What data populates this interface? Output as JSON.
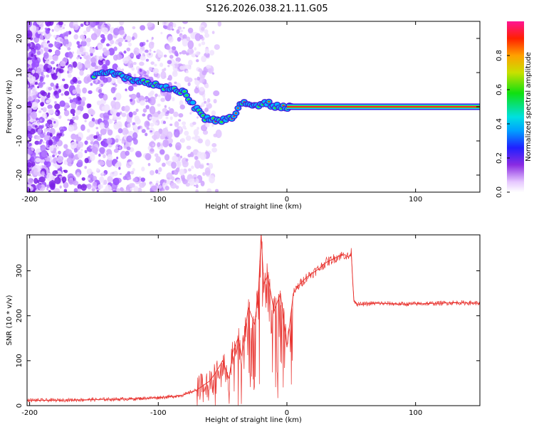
{
  "title": "S126.2026.038.21.11.G05",
  "colors": {
    "snr_line": "#e8312d",
    "axis": "#000000",
    "background": "#ffffff"
  },
  "chart_data": [
    {
      "type": "heatmap",
      "xlabel": "Height of straight line (km)",
      "ylabel": "Frequency (Hz)",
      "xlim": [
        -202,
        150
      ],
      "ylim": [
        -25,
        25
      ],
      "xticks": [
        -200,
        -100,
        0,
        100
      ],
      "xtick_labels": [
        "-200",
        "-100",
        "0",
        "100"
      ],
      "yticks": [
        -20,
        -10,
        0,
        10,
        20
      ],
      "ytick_labels": [
        "-20",
        "-10",
        "0",
        "10",
        "20"
      ],
      "colorbar": {
        "label": "Normalized spectral amplitude",
        "range": [
          0,
          1
        ],
        "ticks": [
          0.0,
          0.2,
          0.4,
          0.6,
          0.8
        ],
        "tick_labels": [
          "0.0",
          "0.2",
          "0.4",
          "0.6",
          "0.8"
        ]
      },
      "ridge": {
        "x": [
          -150,
          -140,
          -130,
          -120,
          -110,
          -100,
          -90,
          -80,
          -72,
          -65,
          -58,
          -50,
          -42,
          -36,
          -30,
          -24,
          -18,
          -12,
          -6,
          0,
          5,
          150
        ],
        "frequency": [
          9,
          10,
          9,
          8,
          7,
          6,
          5,
          4,
          0,
          -3,
          -4,
          -4,
          -3,
          1,
          0.5,
          0,
          1.5,
          0.5,
          0,
          0,
          0,
          0
        ]
      }
    },
    {
      "type": "line",
      "xlabel": "Height of straight line (km)",
      "ylabel": "SNR (10 * v/v)",
      "xlim": [
        -202,
        150
      ],
      "ylim": [
        0,
        380
      ],
      "xticks": [
        -200,
        -100,
        0,
        100
      ],
      "xtick_labels": [
        "-200",
        "-100",
        "0",
        "100"
      ],
      "yticks": [
        0,
        100,
        200,
        300
      ],
      "ytick_labels": [
        "0",
        "100",
        "200",
        "300"
      ],
      "series": [
        {
          "name": "SNR",
          "x": [
            -202,
            -180,
            -160,
            -140,
            -120,
            -100,
            -90,
            -80,
            -75,
            -70,
            -65,
            -60,
            -55,
            -50,
            -45,
            -42,
            -38,
            -35,
            -30,
            -25,
            -22,
            -20,
            -18,
            -15,
            -10,
            -5,
            0,
            5,
            10,
            15,
            20,
            25,
            30,
            35,
            40,
            45,
            48,
            50,
            52,
            55,
            70,
            90,
            110,
            130,
            150
          ],
          "y": [
            12,
            12,
            13,
            14,
            15,
            18,
            20,
            24,
            30,
            35,
            45,
            55,
            75,
            100,
            60,
            120,
            150,
            110,
            220,
            180,
            260,
            380,
            270,
            290,
            210,
            250,
            130,
            250,
            270,
            285,
            295,
            305,
            318,
            325,
            332,
            336,
            330,
            340,
            235,
            225,
            228,
            226,
            227,
            229,
            228
          ]
        }
      ]
    }
  ]
}
